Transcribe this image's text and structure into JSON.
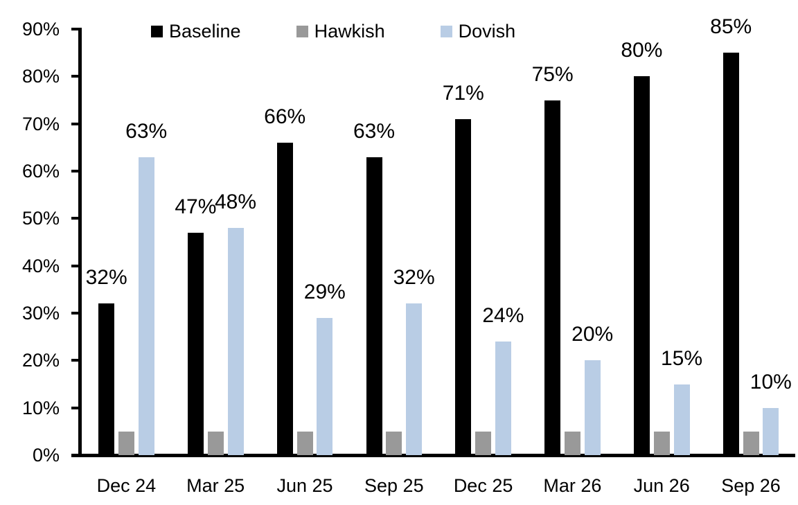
{
  "chart_data": {
    "type": "bar",
    "title": "",
    "xlabel": "",
    "ylabel": "",
    "categories": [
      "Dec 24",
      "Mar 25",
      "Jun 25",
      "Sep 25",
      "Dec 25",
      "Mar 26",
      "Jun 26",
      "Sep 26"
    ],
    "series": [
      {
        "name": "Baseline",
        "color": "#000000",
        "values": [
          32,
          47,
          66,
          63,
          71,
          75,
          80,
          85
        ],
        "data_labels_shown": true
      },
      {
        "name": "Hawkish",
        "color": "#999999",
        "values": [
          5,
          5,
          5,
          5,
          5,
          5,
          5,
          5
        ],
        "data_labels_shown": false
      },
      {
        "name": "Dovish",
        "color": "#b9cde5",
        "values": [
          63,
          48,
          29,
          32,
          24,
          20,
          15,
          10
        ],
        "data_labels_shown": true
      }
    ],
    "data_label_format": "{value}%",
    "ylim": [
      0,
      90
    ],
    "ytick_step": 10,
    "ytick_labels": [
      "0%",
      "10%",
      "20%",
      "30%",
      "40%",
      "50%",
      "60%",
      "70%",
      "80%",
      "90%"
    ],
    "grid": false,
    "legend_position": "top",
    "legend_entries": [
      "Baseline",
      "Hawkish",
      "Dovish"
    ]
  }
}
